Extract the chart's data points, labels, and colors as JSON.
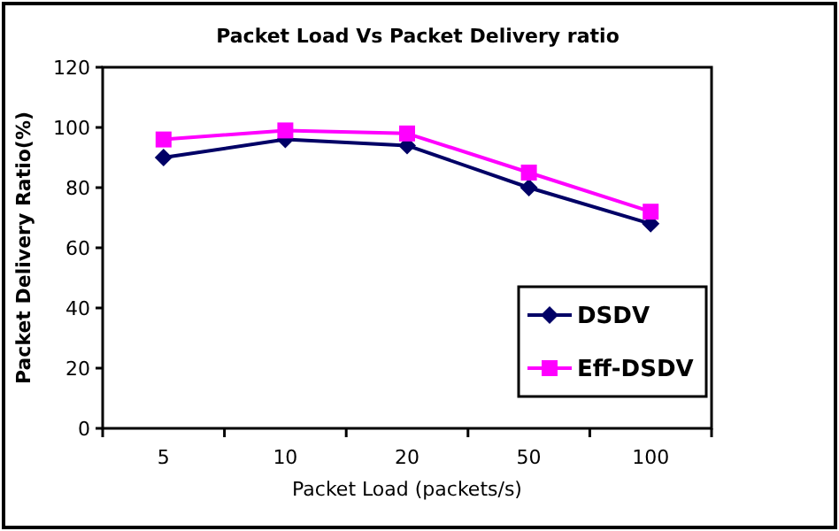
{
  "chart_data": {
    "type": "line",
    "title": "Packet Load Vs Packet Delivery ratio",
    "xlabel": "Packet Load (packets/s)",
    "ylabel": "Packet Delivery Ratio(%)",
    "categories": [
      "5",
      "10",
      "20",
      "50",
      "100"
    ],
    "ylim": [
      0,
      120
    ],
    "yticks": [
      0,
      20,
      40,
      60,
      80,
      100,
      120
    ],
    "grid": false,
    "legend": "bottom right",
    "series": [
      {
        "name": "DSDV",
        "color": "#000066",
        "marker": "diamond",
        "values": [
          90,
          96,
          94,
          80,
          68
        ]
      },
      {
        "name": "Eff-DSDV",
        "color": "#ff00ff",
        "marker": "square",
        "values": [
          96,
          99,
          98,
          85,
          72
        ]
      }
    ]
  }
}
